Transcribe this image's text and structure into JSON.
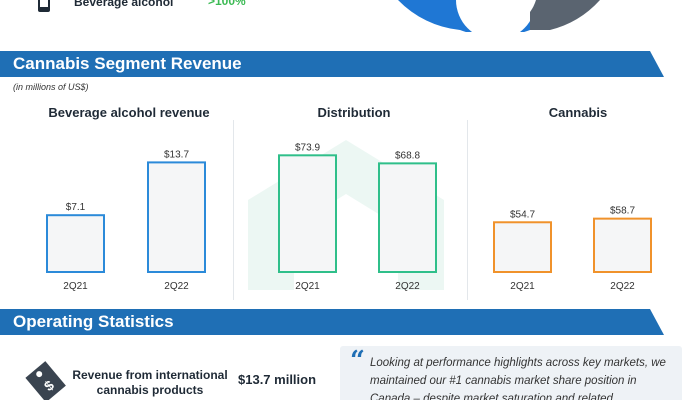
{
  "top": {
    "label": "Beverage alcohol",
    "value": ">100%",
    "colors": {
      "blue": "#1f77d4",
      "gray": "#5a6470",
      "green": "#3cba54"
    }
  },
  "banners": {
    "segment": "Cannabis Segment Revenue",
    "operating": "Operating Statistics",
    "color": "#1f6fb5"
  },
  "subnote": "(in millions of US$)",
  "chart_data": [
    {
      "type": "bar",
      "title": "Beverage alcohol revenue",
      "categories": [
        "2Q21",
        "2Q22"
      ],
      "values": [
        7.1,
        13.7
      ],
      "value_labels": [
        "$7.1",
        "$13.7"
      ],
      "color": "#2b8ad9",
      "ylim": [
        0,
        15
      ]
    },
    {
      "type": "bar",
      "title": "Distribution",
      "categories": [
        "2Q21",
        "2Q22"
      ],
      "values": [
        73.9,
        68.8
      ],
      "value_labels": [
        "$73.9",
        "$68.8"
      ],
      "color": "#2fbf8a",
      "ylim": [
        0,
        76
      ]
    },
    {
      "type": "bar",
      "title": "Cannabis",
      "categories": [
        "2Q21",
        "2Q22"
      ],
      "values": [
        54.7,
        58.7
      ],
      "value_labels": [
        "$54.7",
        "$58.7"
      ],
      "color": "#f0922b",
      "ylim": [
        0,
        132
      ]
    }
  ],
  "stats": {
    "label": "Revenue from international cannabis products",
    "value": "$13.7 million",
    "quote": "Looking at performance highlights across key markets, we maintained our #1 cannabis market share position in Canada – despite market saturation and related"
  }
}
